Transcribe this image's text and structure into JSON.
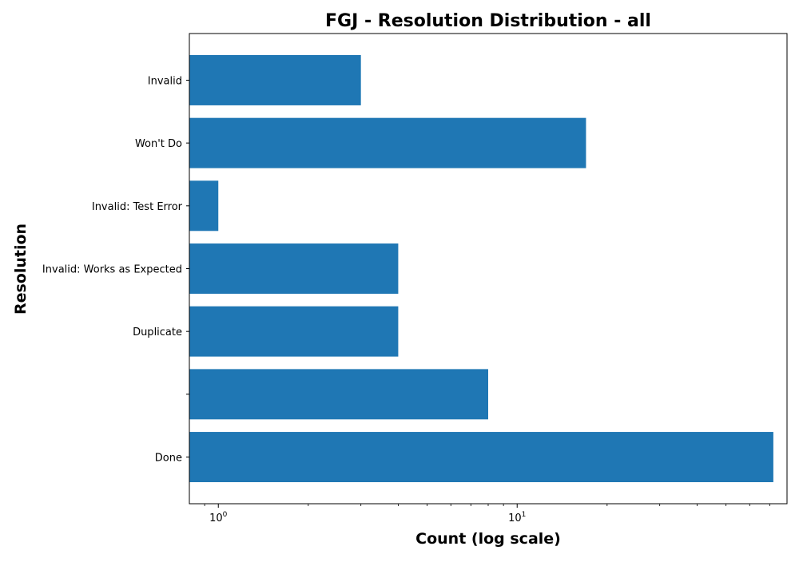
{
  "chart_data": {
    "type": "bar",
    "orientation": "horizontal",
    "title": "FGJ - Resolution Distribution - all",
    "xlabel": "Count (log scale)",
    "ylabel": "Resolution",
    "xscale": "log",
    "xlim": [
      0.8,
      80
    ],
    "categories": [
      "Done",
      "",
      "Duplicate",
      "Invalid: Works as Expected",
      "Invalid: Test Error",
      "Won't Do",
      "Invalid"
    ],
    "values": [
      72,
      8,
      4,
      4,
      1,
      17,
      3
    ],
    "x_ticks": [
      {
        "value": 1,
        "base": "10",
        "exp": "0"
      },
      {
        "value": 10,
        "base": "10",
        "exp": "1"
      }
    ],
    "bar_color": "#1f77b4",
    "grid": false,
    "legend": "none"
  }
}
